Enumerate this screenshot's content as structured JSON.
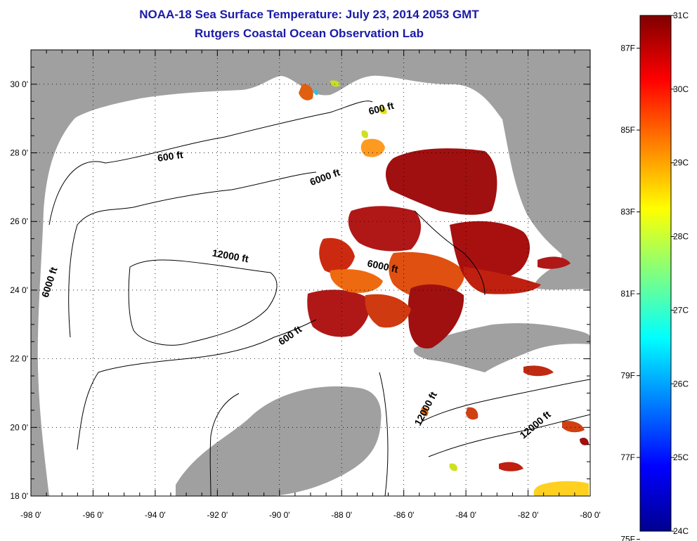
{
  "header": {
    "title": "NOAA-18 Sea Surface Temperature:  July 23, 2014 2053 GMT",
    "subtitle": "Rutgers Coastal Ocean Observation Lab"
  },
  "map": {
    "x_axis": {
      "min": -98,
      "max": -80,
      "ticks": [
        {
          "value": -98,
          "label": "-98 0'"
        },
        {
          "value": -96,
          "label": "-96 0'"
        },
        {
          "value": -94,
          "label": "-94 0'"
        },
        {
          "value": -92,
          "label": "-92 0'"
        },
        {
          "value": -90,
          "label": "-90 0'"
        },
        {
          "value": -88,
          "label": "-88 0'"
        },
        {
          "value": -86,
          "label": "-86 0'"
        },
        {
          "value": -84,
          "label": "-84 0'"
        },
        {
          "value": -82,
          "label": "-82 0'"
        },
        {
          "value": -80,
          "label": "-80 0'"
        }
      ]
    },
    "y_axis": {
      "min": 18,
      "max": 31,
      "ticks": [
        {
          "value": 18,
          "label": "18 0'"
        },
        {
          "value": 20,
          "label": "20 0'"
        },
        {
          "value": 22,
          "label": "22 0'"
        },
        {
          "value": 24,
          "label": "24 0'"
        },
        {
          "value": 26,
          "label": "26 0'"
        },
        {
          "value": 28,
          "label": "28 0'"
        },
        {
          "value": 30,
          "label": "30 0'"
        }
      ]
    },
    "contour_labels": [
      {
        "text": "600 ft",
        "lon": -86.7,
        "lat": 29.2,
        "rotate": -14
      },
      {
        "text": "600 ft",
        "lon": -93.5,
        "lat": 27.8,
        "rotate": -8
      },
      {
        "text": "6000 ft",
        "lon": -88.5,
        "lat": 27.2,
        "rotate": -20
      },
      {
        "text": "6000 ft",
        "lon": -97.3,
        "lat": 24.2,
        "rotate": -72
      },
      {
        "text": "12000 ft",
        "lon": -91.6,
        "lat": 24.9,
        "rotate": 10
      },
      {
        "text": "6000 ft",
        "lon": -86.7,
        "lat": 24.6,
        "rotate": 12
      },
      {
        "text": "600 ft",
        "lon": -89.6,
        "lat": 22.6,
        "rotate": -35
      },
      {
        "text": "12000 ft",
        "lon": -85.2,
        "lat": 20.5,
        "rotate": -62
      },
      {
        "text": "12000 ft",
        "lon": -81.7,
        "lat": 20.0,
        "rotate": -40
      }
    ],
    "colors": {
      "land": "#a0a0a0",
      "ocean_nodata": "#ffffff",
      "grid": "#000000",
      "contour": "#000000"
    }
  },
  "colorbar": {
    "celsius": [
      {
        "value": 31,
        "label": "31C"
      },
      {
        "value": 30,
        "label": "30C"
      },
      {
        "value": 29,
        "label": "29C"
      },
      {
        "value": 28,
        "label": "28C"
      },
      {
        "value": 27,
        "label": "27C"
      },
      {
        "value": 26,
        "label": "26C"
      },
      {
        "value": 25,
        "label": "25C"
      },
      {
        "value": 24,
        "label": "24C"
      }
    ],
    "fahrenheit": [
      {
        "value": 87,
        "label": "87F"
      },
      {
        "value": 85,
        "label": "85F"
      },
      {
        "value": 83,
        "label": "83F"
      },
      {
        "value": 81,
        "label": "81F"
      },
      {
        "value": 79,
        "label": "79F"
      },
      {
        "value": 77,
        "label": "77F"
      },
      {
        "value": 75,
        "label": "75F"
      }
    ],
    "range_c": [
      24,
      31
    ],
    "colormap": [
      "#00008f",
      "#0000ff",
      "#0080ff",
      "#00ffff",
      "#80ff80",
      "#ffff00",
      "#ff8000",
      "#ff0000",
      "#800000"
    ]
  }
}
